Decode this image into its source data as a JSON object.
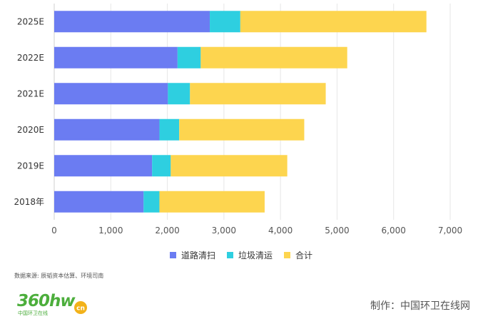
{
  "chart_data": {
    "type": "bar",
    "orientation": "horizontal",
    "stacked": true,
    "categories": [
      "2025E",
      "2022E",
      "2021E",
      "2020E",
      "2019E",
      "2018年"
    ],
    "series": [
      {
        "name": "道路清扫",
        "color": "#6b7cf2",
        "values": [
          2750,
          2180,
          2010,
          1860,
          1730,
          1580
        ]
      },
      {
        "name": "垃圾清运",
        "color": "#2ecfe0",
        "values": [
          540,
          410,
          390,
          350,
          330,
          280
        ]
      },
      {
        "name": "合计",
        "color": "#fdd54f",
        "values": [
          3290,
          2590,
          2400,
          2210,
          2060,
          1860
        ]
      }
    ],
    "xticks": [
      "0",
      "1,000",
      "2,000",
      "3,000",
      "4,000",
      "5,000",
      "6,000",
      "7,000"
    ],
    "xlim": [
      0,
      7000
    ],
    "grid": "vertical",
    "legend_position": "bottom-center"
  },
  "footer": {
    "source": "数据来源: 辰韬资本估算、环境司南",
    "logo_text": "360hw",
    "logo_suffix": "cn",
    "logo_subtitle": "中国环卫在线",
    "maker": "制作：中国环卫在线网"
  }
}
